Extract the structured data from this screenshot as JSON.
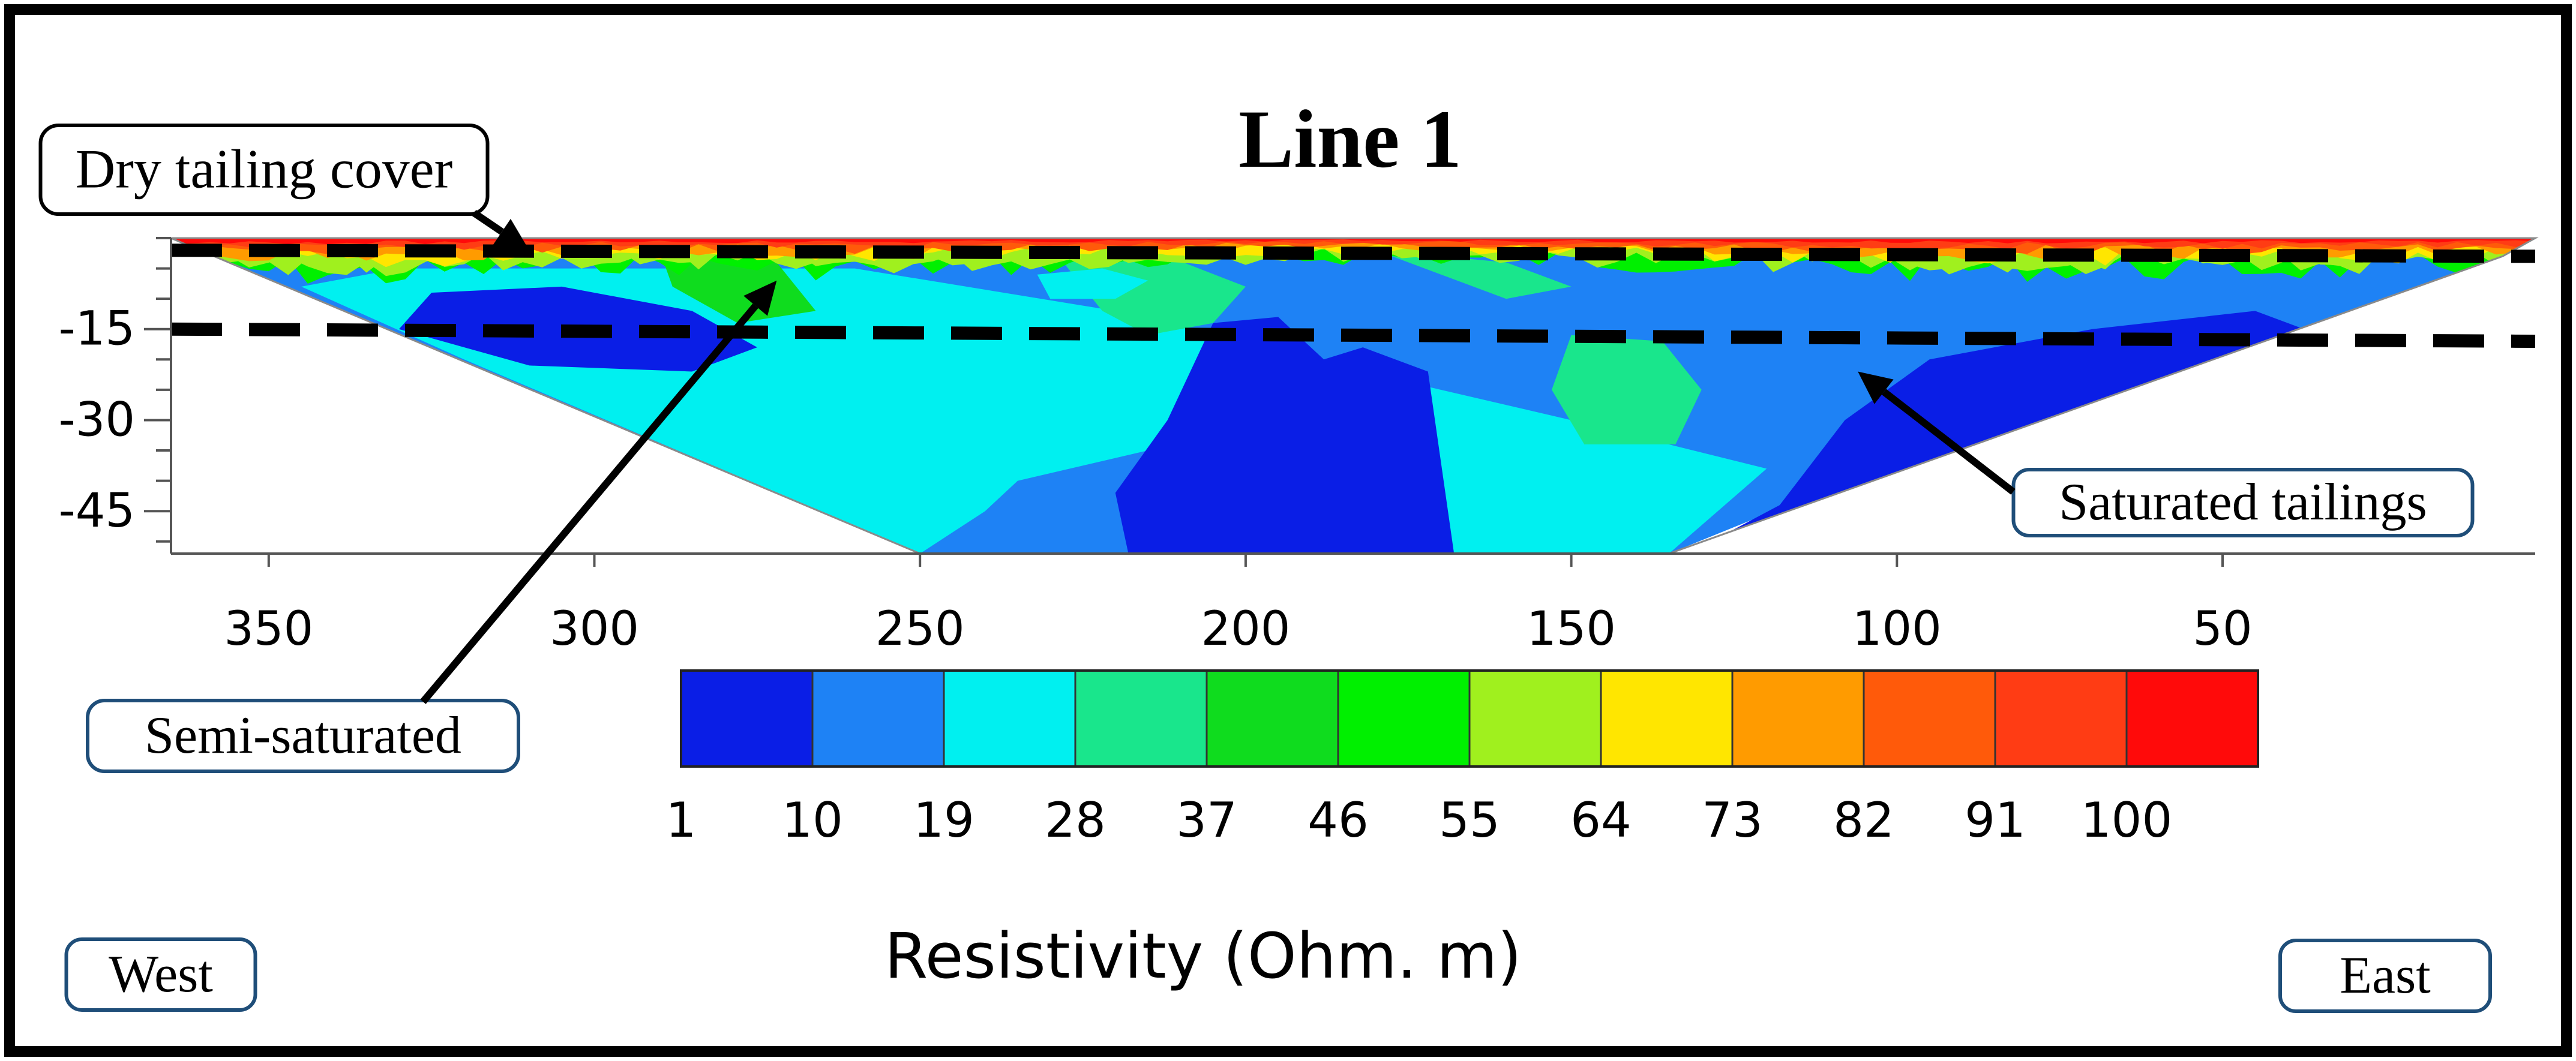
{
  "chart_data": {
    "type": "heatmap",
    "title": "Line 1",
    "subtype": "electrical resistivity tomography section",
    "x_axis": {
      "label": "",
      "range": [
        365,
        2
      ],
      "ticks": [
        350,
        300,
        250,
        200,
        150,
        100,
        50
      ]
    },
    "y_axis": {
      "label": "",
      "range": [
        -52,
        0
      ],
      "ticks": [
        -15,
        -30,
        -45
      ]
    },
    "colorbar": {
      "label": "Resistivity (Ohm. m)",
      "tick_labels": [
        "1",
        "10",
        "19",
        "28",
        "37",
        "46",
        "55",
        "64",
        "73",
        "82",
        "91",
        "100"
      ],
      "bands": [
        {
          "from": 1,
          "to": 10,
          "color": "#0a1ee6"
        },
        {
          "from": 10,
          "to": 19,
          "color": "#1e82f5"
        },
        {
          "from": 19,
          "to": 28,
          "color": "#00f0f0"
        },
        {
          "from": 28,
          "to": 37,
          "color": "#19e68c"
        },
        {
          "from": 37,
          "to": 46,
          "color": "#0fdc1e"
        },
        {
          "from": 46,
          "to": 55,
          "color": "#00f000"
        },
        {
          "from": 55,
          "to": 64,
          "color": "#a0f01e"
        },
        {
          "from": 64,
          "to": 73,
          "color": "#ffe600"
        },
        {
          "from": 73,
          "to": 82,
          "color": "#ff9b00"
        },
        {
          "from": 82,
          "to": 91,
          "color": "#ff5a0a"
        },
        {
          "from": 91,
          "to": 100,
          "color": "#ff3c14"
        },
        {
          "from": 100,
          "to": 110,
          "color": "#ff0a0a"
        }
      ]
    },
    "section_outline": [
      [
        365,
        0
      ],
      [
        2,
        0
      ],
      [
        7,
        -3
      ],
      [
        135,
        -52
      ],
      [
        250,
        -52
      ]
    ],
    "layer_boundaries": [
      {
        "name": "dry-cover-base",
        "points": [
          [
            365,
            -2
          ],
          [
            2,
            -3
          ]
        ]
      },
      {
        "name": "saturated-top",
        "points": [
          [
            365,
            -15
          ],
          [
            2,
            -17
          ]
        ]
      }
    ],
    "zones": [
      {
        "value": 15,
        "poly": [
          [
            362,
            -1
          ],
          [
            5,
            -1
          ],
          [
            28,
            -14
          ],
          [
            80,
            -28
          ],
          [
            135,
            -52
          ],
          [
            250,
            -52
          ],
          [
            365,
            -1
          ]
        ]
      },
      {
        "value": 24,
        "poly": [
          [
            330,
            -5
          ],
          [
            260,
            -5
          ],
          [
            220,
            -12
          ],
          [
            190,
            -20
          ],
          [
            150,
            -30
          ],
          [
            120,
            -38
          ],
          [
            135,
            -52
          ],
          [
            250,
            -52
          ],
          [
            320,
            -20
          ],
          [
            345,
            -8
          ]
        ]
      },
      {
        "value": 15,
        "poly": [
          [
            235,
            -40
          ],
          [
            215,
            -35
          ],
          [
            205,
            -40
          ],
          [
            180,
            -46
          ],
          [
            170,
            -52
          ],
          [
            250,
            -52
          ],
          [
            240,
            -45
          ]
        ]
      },
      {
        "value": 5,
        "poly": [
          [
            325,
            -9
          ],
          [
            305,
            -8
          ],
          [
            285,
            -12
          ],
          [
            275,
            -18
          ],
          [
            285,
            -22
          ],
          [
            310,
            -21
          ],
          [
            330,
            -15
          ]
        ]
      },
      {
        "value": 5,
        "poly": [
          [
            218,
            -52
          ],
          [
            220,
            -42
          ],
          [
            212,
            -30
          ],
          [
            205,
            -14
          ],
          [
            195,
            -13
          ],
          [
            188,
            -20
          ],
          [
            182,
            -18
          ],
          [
            172,
            -22
          ],
          [
            168,
            -52
          ]
        ]
      },
      {
        "value": 5,
        "poly": [
          [
            132,
            -52
          ],
          [
            118,
            -44
          ],
          [
            108,
            -30
          ],
          [
            95,
            -20
          ],
          [
            70,
            -15
          ],
          [
            45,
            -12
          ],
          [
            30,
            -18
          ],
          [
            60,
            -28
          ],
          [
            90,
            -40
          ],
          [
            135,
            -52
          ]
        ]
      },
      {
        "value": 33,
        "poly": [
          [
            150,
            -16
          ],
          [
            136,
            -17
          ],
          [
            130,
            -25
          ],
          [
            134,
            -34
          ],
          [
            148,
            -34
          ],
          [
            153,
            -25
          ]
        ]
      },
      {
        "value": 33,
        "poly": [
          [
            240,
            -3
          ],
          [
            228,
            -4
          ],
          [
            222,
            -12
          ],
          [
            215,
            -16
          ],
          [
            205,
            -14
          ],
          [
            200,
            -8
          ],
          [
            212,
            -3
          ]
        ]
      },
      {
        "value": 42,
        "poly": [
          [
            290,
            -2
          ],
          [
            272,
            -4
          ],
          [
            266,
            -12
          ],
          [
            278,
            -14
          ],
          [
            288,
            -8
          ]
        ]
      },
      {
        "value": 24,
        "poly": [
          [
            232,
            -6
          ],
          [
            222,
            -5
          ],
          [
            215,
            -7
          ],
          [
            220,
            -10
          ],
          [
            230,
            -10
          ]
        ]
      },
      {
        "value": 33,
        "poly": [
          [
            180,
            -2
          ],
          [
            170,
            -6
          ],
          [
            160,
            -10
          ],
          [
            150,
            -8
          ],
          [
            160,
            -4
          ]
        ]
      }
    ],
    "surface_layer": {
      "bottom": [
        [
          365,
          -5
        ],
        [
          330,
          -6
        ],
        [
          300,
          -4
        ],
        [
          260,
          -5
        ],
        [
          220,
          -4
        ],
        [
          180,
          -3
        ],
        [
          140,
          -4
        ],
        [
          100,
          -5
        ],
        [
          60,
          -5
        ],
        [
          30,
          -5
        ],
        [
          2,
          -4
        ]
      ],
      "values": [
        50,
        55,
        60,
        68,
        77,
        86,
        94,
        104
      ]
    },
    "annotations": [
      {
        "text": "Dry tailing cover",
        "arrow_to": [
          310,
          -2
        ]
      },
      {
        "text": "Semi-saturated",
        "arrow_to": [
          272,
          -7
        ]
      },
      {
        "text": "Saturated tailings",
        "arrow_to": [
          106,
          -22
        ]
      },
      {
        "text": "West",
        "arrow_to": null
      },
      {
        "text": "East",
        "arrow_to": null
      }
    ]
  }
}
